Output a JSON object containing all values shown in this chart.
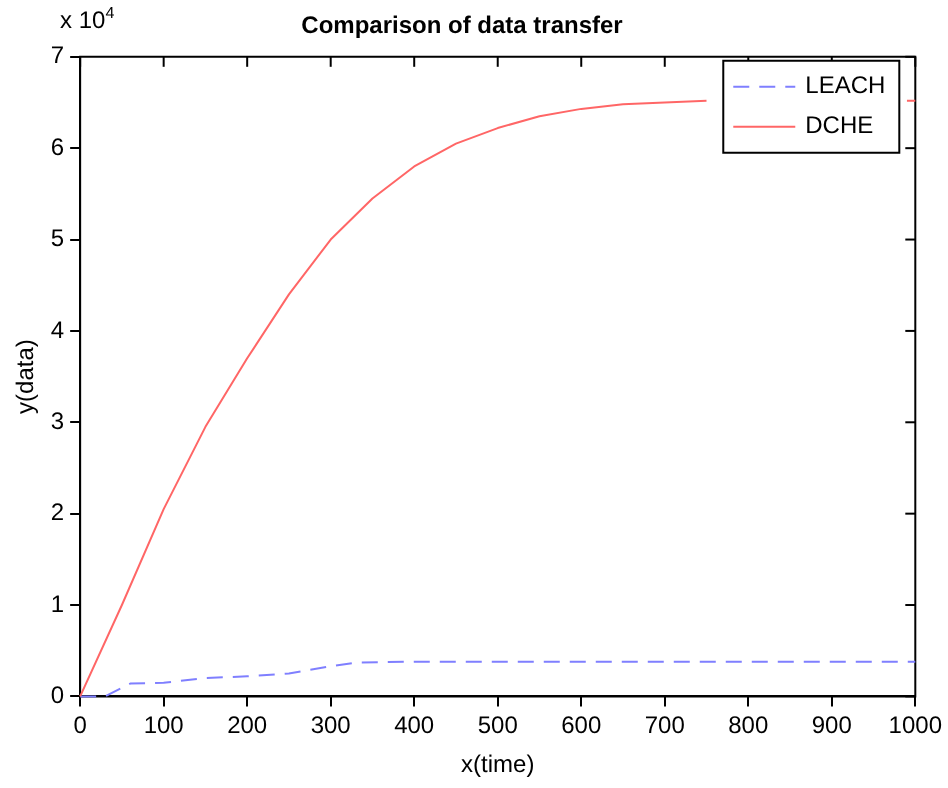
{
  "chart_data": {
    "type": "line",
    "title": "Comparison of data transfer",
    "xlabel": "x(time)",
    "ylabel": "y(data)",
    "annotations": [
      "x 10$^{4}$"
    ],
    "xlim": [
      0,
      1000
    ],
    "xticks": [
      0,
      100,
      200,
      300,
      400,
      500,
      600,
      700,
      800,
      900,
      1000
    ],
    "ylim": [
      0,
      7
    ],
    "yticks": [
      0,
      1,
      2,
      3,
      4,
      5,
      6,
      7
    ],
    "grid": false,
    "legend": "top right",
    "marker": "none",
    "series": [
      {
        "name": "LEACH",
        "color": "#7f7fff",
        "line_style": "dashed",
        "x": [
          0,
          30,
          60,
          100,
          150,
          200,
          250,
          300,
          330,
          400,
          1000
        ],
        "values": [
          0,
          0,
          0.14,
          0.15,
          0.2,
          0.22,
          0.25,
          0.33,
          0.37,
          0.38,
          0.38
        ]
      },
      {
        "name": "DCHE",
        "color": "#ff6666",
        "line_style": "solid",
        "x": [
          0,
          50,
          100,
          150,
          200,
          250,
          300,
          350,
          400,
          450,
          500,
          550,
          600,
          650,
          700,
          750,
          800,
          900,
          990,
          1000
        ],
        "values": [
          0,
          1.0,
          2.05,
          2.95,
          3.7,
          4.4,
          5.0,
          5.45,
          5.8,
          6.05,
          6.22,
          6.35,
          6.43,
          6.48,
          6.5,
          6.52,
          null,
          null,
          6.52,
          6.52
        ]
      }
    ]
  }
}
